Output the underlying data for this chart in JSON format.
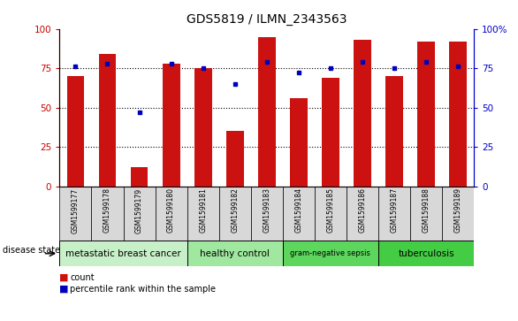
{
  "title": "GDS5819 / ILMN_2343563",
  "samples": [
    "GSM1599177",
    "GSM1599178",
    "GSM1599179",
    "GSM1599180",
    "GSM1599181",
    "GSM1599182",
    "GSM1599183",
    "GSM1599184",
    "GSM1599185",
    "GSM1599186",
    "GSM1599187",
    "GSM1599188",
    "GSM1599189"
  ],
  "counts": [
    70,
    84,
    12,
    78,
    75,
    35,
    95,
    56,
    69,
    93,
    70,
    92,
    92
  ],
  "percentile_ranks": [
    76,
    78,
    47,
    78,
    75,
    65,
    79,
    72,
    75,
    79,
    75,
    79,
    76
  ],
  "disease_groups": [
    {
      "label": "metastatic breast cancer",
      "start": 0,
      "end": 3,
      "color": "#c8f0c8"
    },
    {
      "label": "healthy control",
      "start": 4,
      "end": 6,
      "color": "#a0e8a0"
    },
    {
      "label": "gram-negative sepsis",
      "start": 7,
      "end": 9,
      "color": "#5cd65c"
    },
    {
      "label": "tuberculosis",
      "start": 10,
      "end": 12,
      "color": "#44cc44"
    }
  ],
  "bar_color": "#cc1111",
  "dot_color": "#0000bb",
  "left_axis_color": "#cc0000",
  "right_axis_color": "#0000cc",
  "ylim": [
    0,
    100
  ],
  "yticks": [
    0,
    25,
    50,
    75,
    100
  ],
  "background_label": "#d8d8d8",
  "disease_state_label": "disease state",
  "legend_count": "count",
  "legend_percentile": "percentile rank within the sample",
  "bar_width": 0.55
}
